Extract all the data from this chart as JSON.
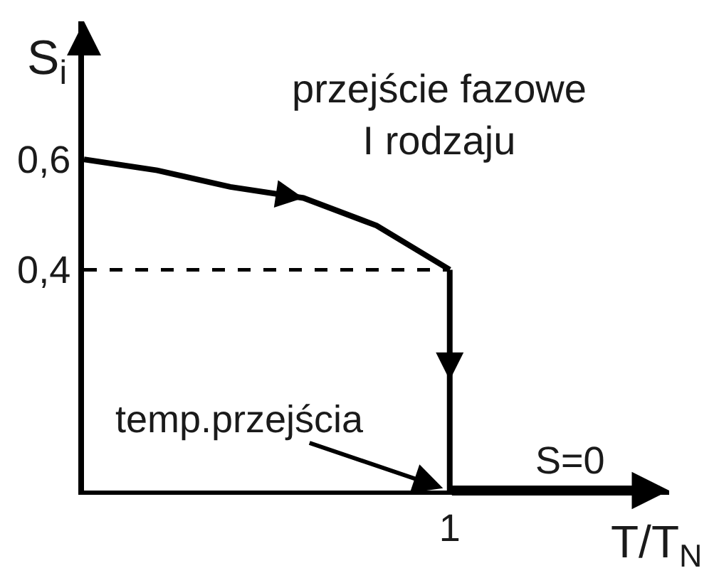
{
  "chart_data": {
    "type": "line",
    "xlabel": "T/T$_{N}$",
    "ylabel": "S$_{i}$",
    "categories": [
      null,
      null,
      null,
      null,
      null,
      "1",
      null,
      null,
      null
    ],
    "series": [
      {
        "color": "#000000",
        "values": [
          0.6,
          0.58,
          0.55,
          0.53,
          0.48,
          0.4,
          null,
          null,
          null
        ]
      },
      {
        "color": "#000000",
        "x": [
          "1",
          "1"
        ],
        "values": [
          0.4,
          0
        ]
      },
      {
        "color": "#000000",
        "values": [
          0.4,
          0.4,
          0.4,
          0.4,
          0.4,
          0.4,
          null,
          null,
          null
        ],
        "line_style": "dashed"
      }
    ],
    "ylim": [
      0,
      0.85
    ],
    "yticks": [
      {
        "value": 0.6,
        "label": "0,6"
      },
      {
        "value": 0.4,
        "label": "0,4"
      }
    ],
    "annotations": [
      "przejście fazowe\nI rodzaju",
      {
        "text": "temp.przejścia",
        "x": "1",
        "y": 0
      },
      "S=0"
    ]
  }
}
